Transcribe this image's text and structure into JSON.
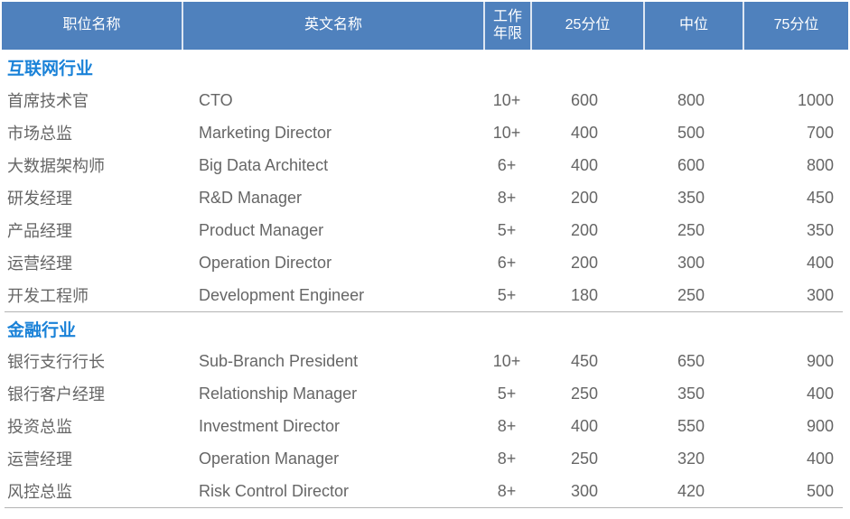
{
  "table": {
    "headers": [
      "职位名称",
      "英文名称",
      "工作年限",
      "25分位",
      "中位",
      "75分位"
    ],
    "sections": [
      {
        "title": "互联网行业",
        "rows": [
          {
            "position_cn": "首席技术官",
            "position_en": "CTO",
            "years": "10+",
            "p25": "600",
            "median": "800",
            "p75": "1000"
          },
          {
            "position_cn": "市场总监",
            "position_en": "Marketing Director",
            "years": "10+",
            "p25": "400",
            "median": "500",
            "p75": "700"
          },
          {
            "position_cn": "大数据架构师",
            "position_en": "Big Data Architect",
            "years": "6+",
            "p25": "400",
            "median": "600",
            "p75": "800"
          },
          {
            "position_cn": "研发经理",
            "position_en": "R&D Manager",
            "years": "8+",
            "p25": "200",
            "median": "350",
            "p75": "450"
          },
          {
            "position_cn": "产品经理",
            "position_en": "Product Manager",
            "years": "5+",
            "p25": "200",
            "median": "250",
            "p75": "350"
          },
          {
            "position_cn": "运营经理",
            "position_en": "Operation Director",
            "years": "6+",
            "p25": "200",
            "median": "300",
            "p75": "400"
          },
          {
            "position_cn": "开发工程师",
            "position_en": "Development Engineer",
            "years": "5+",
            "p25": "180",
            "median": "250",
            "p75": "300"
          }
        ]
      },
      {
        "title": "金融行业",
        "rows": [
          {
            "position_cn": "银行支行行长",
            "position_en": "Sub-Branch President",
            "years": "10+",
            "p25": "450",
            "median": "650",
            "p75": "900"
          },
          {
            "position_cn": "银行客户经理",
            "position_en": "Relationship Manager",
            "years": "5+",
            "p25": "250",
            "median": "350",
            "p75": "400"
          },
          {
            "position_cn": "投资总监",
            "position_en": "Investment Director",
            "years": "8+",
            "p25": "400",
            "median": "550",
            "p75": "900"
          },
          {
            "position_cn": "运营经理",
            "position_en": "Operation Manager",
            "years": "8+",
            "p25": "250",
            "median": "320",
            "p75": "400"
          },
          {
            "position_cn": "风控总监",
            "position_en": "Risk Control Director",
            "years": "8+",
            "p25": "300",
            "median": "420",
            "p75": "500"
          }
        ]
      }
    ]
  },
  "colors": {
    "header_bg": "#4f81bd",
    "header_text": "#ffffff",
    "header_separator": "#dde6f2",
    "section_title_text": "#1a82d8",
    "body_text": "#666666",
    "divider_line": "#b3b3b3"
  }
}
